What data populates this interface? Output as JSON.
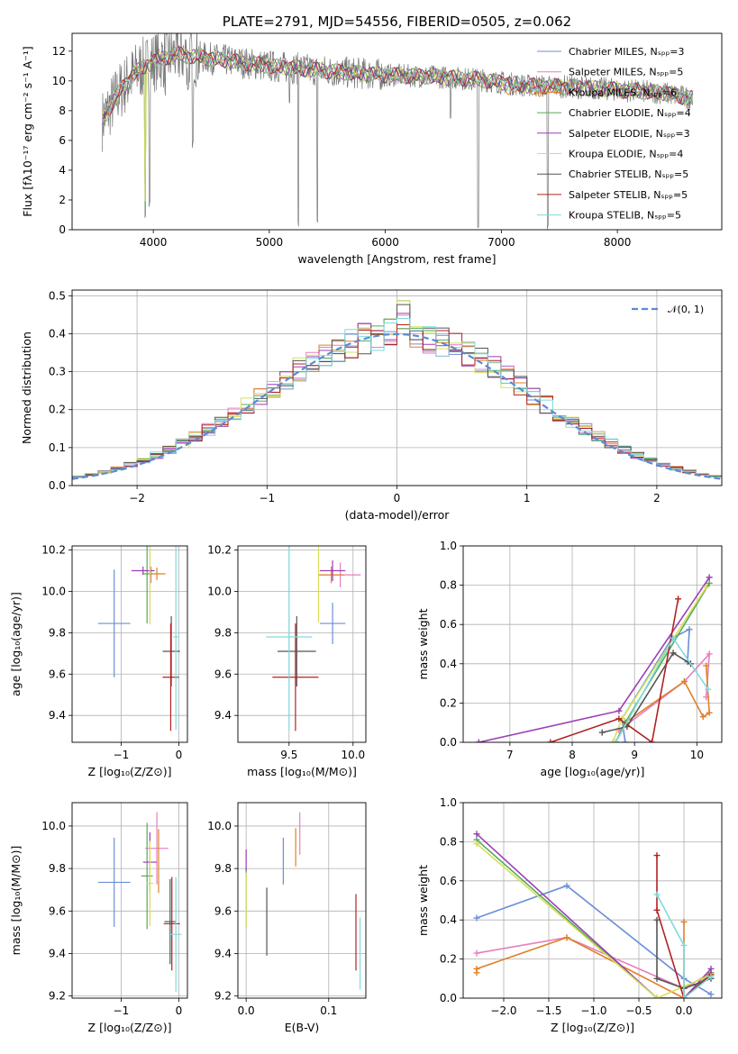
{
  "chart_data": [
    {
      "type": "line",
      "title": "PLATE=2791, MJD=54556, FIBERID=0505, z=0.062",
      "xlabel": "wavelength [Angstrom, rest frame]",
      "ylabel": "Flux [fλ10⁻¹⁷ erg cm⁻² s⁻¹ A⁻¹]",
      "xlim": [
        3300,
        8900
      ],
      "ylim": [
        0,
        13.2
      ],
      "xticks": [
        "4000",
        "5000",
        "6000",
        "7000",
        "8000"
      ],
      "yticks": [
        "0",
        "2",
        "4",
        "6",
        "8",
        "10",
        "12"
      ],
      "grid": false,
      "legend": "upper right",
      "series": [
        {
          "name": "Chabrier MILES, Nₛₚₚ=3",
          "color": "#6a8fd6"
        },
        {
          "name": "Salpeter MILES, Nₛₚₚ=5",
          "color": "#e67fbf"
        },
        {
          "name": "Kroupa MILES, Nₛₚₚ=6",
          "color": "#e0802a"
        },
        {
          "name": "Chabrier ELODIE, Nₛₚₚ=4",
          "color": "#55aa55"
        },
        {
          "name": "Salpeter ELODIE, Nₛₚₚ=3",
          "color": "#9b3fb5"
        },
        {
          "name": "Kroupa ELODIE, Nₛₚₚ=4",
          "color": "#d6e05a"
        },
        {
          "name": "Chabrier STELIB, Nₛₚₚ=5",
          "color": "#555555"
        },
        {
          "name": "Salpeter STELIB, Nₛₚₚ=5",
          "color": "#b22222"
        },
        {
          "name": "Kroupa STELIB, Nₛₚₚ=5",
          "color": "#7fdadf"
        }
      ],
      "continuum": [
        [
          3550,
          7.2
        ],
        [
          3700,
          9.2
        ],
        [
          3850,
          10.6
        ],
        [
          4000,
          11.3
        ],
        [
          4200,
          11.8
        ],
        [
          4400,
          11.6
        ],
        [
          4600,
          11.4
        ],
        [
          4800,
          11.2
        ],
        [
          5000,
          11.0
        ],
        [
          5300,
          10.8
        ],
        [
          5600,
          10.6
        ],
        [
          6000,
          10.4
        ],
        [
          6400,
          10.3
        ],
        [
          6800,
          10.1
        ],
        [
          7200,
          9.7
        ],
        [
          7600,
          9.6
        ],
        [
          8000,
          9.4
        ],
        [
          8400,
          9.2
        ],
        [
          8650,
          8.8
        ]
      ],
      "absorption_lines": [
        [
          3930,
          0.5
        ],
        [
          3968,
          1.5
        ],
        [
          4102,
          9.0
        ],
        [
          4300,
          9.3
        ],
        [
          4340,
          5.5
        ],
        [
          5175,
          8.5
        ],
        [
          5250,
          0.2
        ],
        [
          5415,
          0.2
        ],
        [
          6563,
          7.3
        ],
        [
          6800,
          0.0
        ],
        [
          7400,
          0.0
        ]
      ]
    },
    {
      "type": "line",
      "xlabel": "(data-model)/error",
      "ylabel": "Normed distribution",
      "xlim": [
        -2.5,
        2.5
      ],
      "ylim": [
        0,
        0.515
      ],
      "xticks": [
        "−2",
        "−1",
        "0",
        "1",
        "2"
      ],
      "yticks": [
        "0.0",
        "0.1",
        "0.2",
        "0.3",
        "0.4",
        "0.5"
      ],
      "grid": true,
      "legend": "upper right",
      "legend_label": "𝒩(0, 1)",
      "bin_width": 0.1
    },
    {
      "type": "scatter",
      "xlabel": "Z [log₁₀(Z/Z⊙)]",
      "ylabel": "age  [log₁₀(age/yr)]",
      "xlim": [
        -1.85,
        0.15
      ],
      "ylim": [
        9.27,
        10.22
      ],
      "xticks": [
        "−1",
        "0"
      ],
      "yticks": [
        "9.4",
        "9.6",
        "9.8",
        "10.0",
        "10.2"
      ],
      "points": [
        {
          "x": -1.12,
          "xerr": 0.28,
          "y": 9.845,
          "yerr": 0.26,
          "color": "#6a8fd6"
        },
        {
          "x": -0.48,
          "xerr": 0.0,
          "y": 10.08,
          "yerr": 0.04,
          "color": "#e67fbf"
        },
        {
          "x": -0.38,
          "xerr": 0.15,
          "y": 10.085,
          "yerr": 0.03,
          "color": "#e0802a"
        },
        {
          "x": -0.55,
          "xerr": 0.08,
          "y": 10.085,
          "yerr": 0.24,
          "color": "#55aa55"
        },
        {
          "x": -0.62,
          "xerr": 0.2,
          "y": 10.1,
          "yerr": 0.02,
          "color": "#9b3fb5"
        },
        {
          "x": -0.5,
          "xerr": 0.02,
          "y": 10.09,
          "yerr": 0.25,
          "color": "#d6e05a"
        },
        {
          "x": -0.13,
          "xerr": 0.15,
          "y": 9.71,
          "yerr": 0.17,
          "color": "#555555"
        },
        {
          "x": -0.14,
          "xerr": 0.14,
          "y": 9.585,
          "yerr": 0.26,
          "color": "#b22222"
        },
        {
          "x": -0.05,
          "xerr": 0.05,
          "y": 9.78,
          "yerr": 0.45,
          "color": "#7fdadf"
        }
      ]
    },
    {
      "type": "scatter",
      "xlabel": "mass [log₁₀(M/M⊙)]",
      "xlim": [
        9.1,
        10.1
      ],
      "ylim": [
        9.27,
        10.22
      ],
      "xticks": [
        "9.5",
        "10.0"
      ],
      "yticks": [
        "9.4",
        "9.6",
        "9.8",
        "10.0",
        "10.2"
      ],
      "points": [
        {
          "x": 9.84,
          "xerr": 0.1,
          "y": 9.845,
          "yerr": 0.1,
          "color": "#6a8fd6"
        },
        {
          "x": 9.9,
          "xerr": 0.16,
          "y": 10.08,
          "yerr": 0.06,
          "color": "#e67fbf"
        },
        {
          "x": 9.83,
          "xerr": 0.1,
          "y": 10.08,
          "yerr": 0.04,
          "color": "#e0802a"
        },
        {
          "x": 9.75,
          "xerr": 0.0,
          "y": 10.1,
          "yerr": 0.0,
          "color": "#55aa55"
        },
        {
          "x": 9.84,
          "xerr": 0.1,
          "y": 10.1,
          "yerr": 0.05,
          "color": "#9b3fb5"
        },
        {
          "x": 9.73,
          "xerr": 0.0,
          "y": 10.1,
          "yerr": 0.25,
          "color": "#d6e05a"
        },
        {
          "x": 9.56,
          "xerr": 0.15,
          "y": 9.71,
          "yerr": 0.17,
          "color": "#555555"
        },
        {
          "x": 9.55,
          "xerr": 0.18,
          "y": 9.585,
          "yerr": 0.26,
          "color": "#b22222"
        },
        {
          "x": 9.5,
          "xerr": 0.18,
          "y": 9.78,
          "yerr": 0.45,
          "color": "#7fdadf"
        }
      ]
    },
    {
      "type": "line",
      "xlabel": "age  [log₁₀(age/yr)]",
      "ylabel": "mass weight",
      "xlim": [
        6.25,
        10.4
      ],
      "ylim": [
        0,
        1.0
      ],
      "xticks": [
        "7",
        "8",
        "9",
        "10"
      ],
      "yticks": [
        "0.0",
        "0.2",
        "0.4",
        "0.6",
        "0.8",
        "1.0"
      ],
      "grid": true,
      "series": [
        {
          "color": "#6a8fd6",
          "points": [
            [
              8.85,
              0.0
            ],
            [
              8.8,
              0.12
            ],
            [
              9.6,
              0.53
            ],
            [
              9.88,
              0.575
            ],
            [
              9.85,
              0.41
            ]
          ]
        },
        {
          "color": "#e67fbf",
          "points": [
            [
              8.75,
              0.06
            ],
            [
              9.8,
              0.31
            ],
            [
              10.2,
              0.45
            ],
            [
              10.15,
              0.23
            ]
          ]
        },
        {
          "color": "#e0802a",
          "points": [
            [
              8.7,
              0.0
            ],
            [
              8.85,
              0.1
            ],
            [
              9.8,
              0.31
            ],
            [
              10.1,
              0.13
            ],
            [
              10.2,
              0.15
            ],
            [
              10.15,
              0.39
            ]
          ]
        },
        {
          "color": "#55aa55",
          "points": [
            [
              8.7,
              0.0
            ],
            [
              8.85,
              0.1
            ],
            [
              10.2,
              0.81
            ]
          ]
        },
        {
          "color": "#9b3fb5",
          "points": [
            [
              6.5,
              0.0
            ],
            [
              8.75,
              0.16
            ],
            [
              10.2,
              0.84
            ]
          ]
        },
        {
          "color": "#d6e05a",
          "points": [
            [
              8.65,
              0.0
            ],
            [
              8.8,
              0.12
            ],
            [
              10.15,
              0.79
            ]
          ]
        },
        {
          "color": "#555555",
          "points": [
            [
              8.48,
              0.05
            ],
            [
              8.88,
              0.08
            ],
            [
              9.62,
              0.455
            ],
            [
              9.9,
              0.4
            ]
          ]
        },
        {
          "color": "#b22222",
          "points": [
            [
              7.65,
              0.0
            ],
            [
              8.75,
              0.12
            ],
            [
              9.28,
              0.0
            ],
            [
              9.7,
              0.73
            ]
          ]
        },
        {
          "color": "#7fdadf",
          "points": [
            [
              8.7,
              0.0
            ],
            [
              9.62,
              0.53
            ],
            [
              10.18,
              0.27
            ]
          ]
        }
      ]
    },
    {
      "type": "scatter",
      "xlabel": "Z [log₁₀(Z/Z⊙)]",
      "ylabel": "mass [log₁₀(M/M⊙)]",
      "xlim": [
        -1.85,
        0.15
      ],
      "ylim": [
        9.19,
        10.11
      ],
      "xticks": [
        "−1",
        "0"
      ],
      "yticks": [
        "9.2",
        "9.4",
        "9.6",
        "9.8",
        "10.0"
      ],
      "points": [
        {
          "x": -1.12,
          "xerr": 0.28,
          "y": 9.735,
          "yerr": 0.21,
          "color": "#6a8fd6"
        },
        {
          "x": -0.38,
          "xerr": 0.2,
          "y": 9.895,
          "yerr": 0.17,
          "color": "#e67fbf"
        },
        {
          "x": -0.35,
          "xerr": 0.0,
          "y": 9.835,
          "yerr": 0.15,
          "color": "#e0802a"
        },
        {
          "x": -0.55,
          "xerr": 0.1,
          "y": 9.765,
          "yerr": 0.25,
          "color": "#55aa55"
        },
        {
          "x": -0.5,
          "xerr": 0.12,
          "y": 9.83,
          "yerr": 0.14,
          "color": "#9b3fb5"
        },
        {
          "x": -0.5,
          "xerr": 0.06,
          "y": 9.73,
          "yerr": 0.2,
          "color": "#d6e05a"
        },
        {
          "x": -0.15,
          "xerr": 0.1,
          "y": 9.55,
          "yerr": 0.2,
          "color": "#555555"
        },
        {
          "x": -0.12,
          "xerr": 0.14,
          "y": 9.54,
          "yerr": 0.22,
          "color": "#b22222"
        },
        {
          "x": -0.05,
          "xerr": 0.1,
          "y": 9.49,
          "yerr": 0.27,
          "color": "#7fdadf"
        }
      ]
    },
    {
      "type": "scatter",
      "xlabel": "E(B-V)",
      "xlim": [
        -0.01,
        0.145
      ],
      "ylim": [
        9.19,
        10.11
      ],
      "xticks": [
        "0.0",
        "0.1"
      ],
      "yticks": [
        "9.2",
        "9.4",
        "9.6",
        "9.8",
        "10.0"
      ],
      "points": [
        {
          "x": 0.045,
          "y": 9.835,
          "yerr": 0.11,
          "color": "#6a8fd6"
        },
        {
          "x": 0.065,
          "y": 9.965,
          "yerr": 0.1,
          "color": "#e67fbf"
        },
        {
          "x": 0.06,
          "y": 9.9,
          "yerr": 0.09,
          "color": "#e0802a"
        },
        {
          "x": 0.0,
          "y": 9.66,
          "yerr": 0.14,
          "color": "#55aa55"
        },
        {
          "x": 0.0,
          "y": 9.84,
          "yerr": 0.05,
          "color": "#9b3fb5"
        },
        {
          "x": 0.0,
          "y": 9.65,
          "yerr": 0.13,
          "color": "#d6e05a"
        },
        {
          "x": 0.025,
          "y": 9.55,
          "yerr": 0.16,
          "color": "#555555"
        },
        {
          "x": 0.133,
          "y": 9.5,
          "yerr": 0.18,
          "color": "#b22222"
        },
        {
          "x": 0.138,
          "y": 9.4,
          "yerr": 0.17,
          "color": "#7fdadf"
        }
      ]
    },
    {
      "type": "line",
      "xlabel": "Z [log₁₀(Z/Z⊙)]",
      "ylabel": "mass weight",
      "xlim": [
        -2.45,
        0.42
      ],
      "ylim": [
        0,
        1.0
      ],
      "xticks": [
        "−2.0",
        "−1.5",
        "−1.0",
        "−0.5",
        "0.0"
      ],
      "yticks": [
        "0.0",
        "0.2",
        "0.4",
        "0.6",
        "0.8",
        "1.0"
      ],
      "grid": true,
      "series": [
        {
          "color": "#6a8fd6",
          "points": [
            [
              -2.3,
              0.41
            ],
            [
              -1.3,
              0.575
            ],
            [
              0.0,
              0.1
            ],
            [
              0.3,
              0.02
            ]
          ]
        },
        {
          "color": "#e67fbf",
          "points": [
            [
              -2.3,
              0.23
            ],
            [
              -1.3,
              0.31
            ],
            [
              0.0,
              0.05
            ],
            [
              0.3,
              0.13
            ]
          ]
        },
        {
          "color": "#e0802a",
          "points": [
            [
              -2.3,
              0.13
            ],
            [
              -2.3,
              0.15
            ],
            [
              -1.3,
              0.31
            ],
            [
              0.0,
              0.0
            ],
            [
              0.0,
              0.39
            ]
          ]
        },
        {
          "color": "#55aa55",
          "points": [
            [
              -2.3,
              0.81
            ],
            [
              -0.3,
              0.0
            ],
            [
              0.0,
              0.0
            ],
            [
              0.3,
              0.13
            ]
          ]
        },
        {
          "color": "#9b3fb5",
          "points": [
            [
              -2.3,
              0.84
            ],
            [
              -0.3,
              0.0
            ],
            [
              0.0,
              0.0
            ],
            [
              0.3,
              0.15
            ]
          ]
        },
        {
          "color": "#d6e05a",
          "points": [
            [
              -2.3,
              0.79
            ],
            [
              -0.3,
              0.0
            ],
            [
              0.0,
              0.06
            ],
            [
              0.3,
              0.12
            ]
          ]
        },
        {
          "color": "#555555",
          "points": [
            [
              -0.3,
              0.4
            ],
            [
              -0.3,
              0.1
            ],
            [
              0.0,
              0.05
            ],
            [
              0.3,
              0.1
            ]
          ]
        },
        {
          "color": "#b22222",
          "points": [
            [
              -0.3,
              0.73
            ],
            [
              -0.3,
              0.45
            ],
            [
              0.0,
              0.0
            ],
            [
              0.3,
              0.12
            ]
          ]
        },
        {
          "color": "#7fdadf",
          "points": [
            [
              -0.3,
              0.53
            ],
            [
              0.0,
              0.27
            ],
            [
              0.0,
              0.0
            ],
            [
              0.3,
              0.11
            ]
          ]
        }
      ]
    }
  ]
}
